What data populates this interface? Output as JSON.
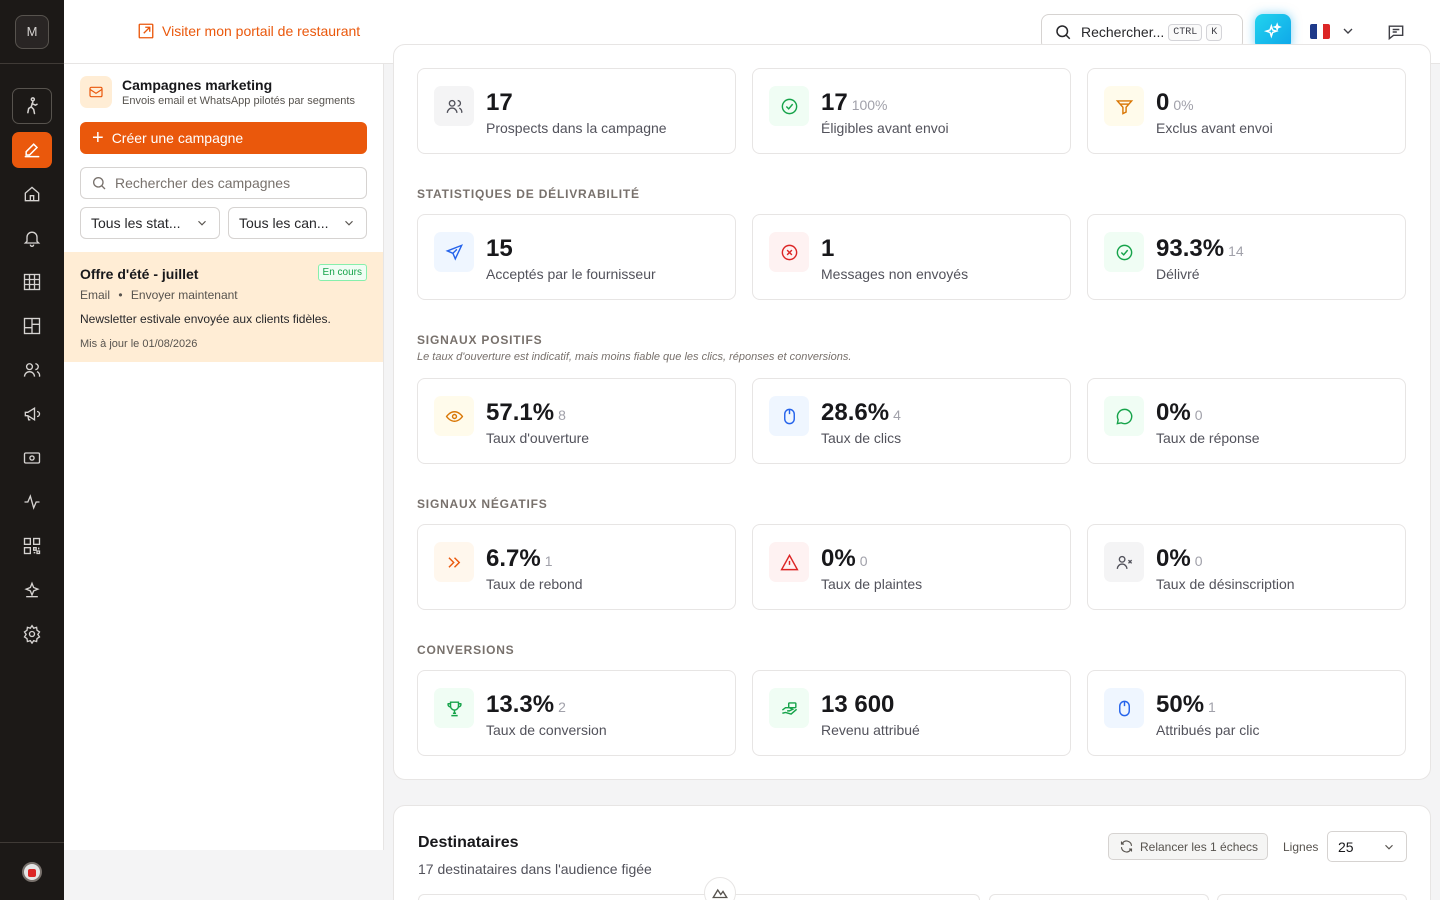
{
  "rail": {
    "logo_letter": "M",
    "icons": [
      "walking-icon",
      "edit-icon",
      "home-icon",
      "bell-icon",
      "grid-icon",
      "layout-icon",
      "users-icon",
      "megaphone-icon",
      "banknote-icon",
      "activity-icon",
      "qr-code-icon",
      "sparkle-icon",
      "gear-icon"
    ],
    "active_icon": "edit-icon"
  },
  "header": {
    "portal_link": "Visiter mon portail de restaurant",
    "search_label": "Rechercher...",
    "shortcut_keys": [
      "CTRL",
      "K"
    ],
    "accent_color": "#ea580c",
    "ai_color": "#0ea5e9"
  },
  "campaigns": {
    "title": "Campagnes marketing",
    "subtitle": "Envois email et WhatsApp pilotés par segments",
    "create_label": "Créer une campagne",
    "search_placeholder": "Rechercher des campagnes",
    "status_filter": "Tous les stat...",
    "channel_filter": "Tous les can...",
    "items": [
      {
        "title": "Offre d'été - juillet",
        "badge": "En cours",
        "channel": "Email",
        "separator": "•",
        "mode": "Envoyer maintenant",
        "description": "Newsletter estivale envoyée aux clients fidèles.",
        "updated": "Mis à jour le 01/08/2026"
      }
    ]
  },
  "summary": [
    {
      "value": "17",
      "sub": "",
      "label": "Prospects dans la campagne",
      "icon": "users-icon"
    },
    {
      "value": "17",
      "sub": "100%",
      "label": "Éligibles avant envoi",
      "icon": "check-circle-icon"
    },
    {
      "value": "0",
      "sub": "0%",
      "label": "Exclus avant envoi",
      "icon": "filter-icon"
    }
  ],
  "deliverability": {
    "title": "STATISTIQUES DE DÉLIVRABILITÉ",
    "stats": [
      {
        "value": "15",
        "sub": "",
        "label": "Acceptés par le fournisseur",
        "icon": "send-icon"
      },
      {
        "value": "1",
        "sub": "",
        "label": "Messages non envoyés",
        "icon": "x-circle-icon"
      },
      {
        "value": "93.3%",
        "sub": "14",
        "label": "Délivré",
        "icon": "check-circle-icon"
      }
    ]
  },
  "positive": {
    "title": "SIGNAUX POSITIFS",
    "note": "Le taux d'ouverture est indicatif, mais moins fiable que les clics, réponses et conversions.",
    "stats": [
      {
        "value": "57.1%",
        "sub": "8",
        "label": "Taux d'ouverture",
        "icon": "eye-icon"
      },
      {
        "value": "28.6%",
        "sub": "4",
        "label": "Taux de clics",
        "icon": "mouse-icon"
      },
      {
        "value": "0%",
        "sub": "0",
        "label": "Taux de réponse",
        "icon": "message-dots-icon"
      }
    ]
  },
  "negative": {
    "title": "SIGNAUX NÉGATIFS",
    "stats": [
      {
        "value": "6.7%",
        "sub": "1",
        "label": "Taux de rebond",
        "icon": "chevrons-right-icon"
      },
      {
        "value": "0%",
        "sub": "0",
        "label": "Taux de plaintes",
        "icon": "alert-triangle-icon"
      },
      {
        "value": "0%",
        "sub": "0",
        "label": "Taux de désinscription",
        "icon": "user-x-icon"
      }
    ]
  },
  "conversions": {
    "title": "CONVERSIONS",
    "stats": [
      {
        "value": "13.3%",
        "sub": "2",
        "label": "Taux de conversion",
        "icon": "trophy-icon"
      },
      {
        "value": "13 600",
        "sub": "",
        "label": "Revenu attribué",
        "icon": "hand-coins-icon"
      },
      {
        "value": "50%",
        "sub": "1",
        "label": "Attribués par clic",
        "icon": "mouse-icon"
      }
    ]
  },
  "recipients": {
    "title": "Destinataires",
    "subtitle": "17 destinataires dans l'audience figée",
    "retry_label": "Relancer les 1 échecs",
    "rows_label": "Lignes",
    "rows_value": "25"
  }
}
